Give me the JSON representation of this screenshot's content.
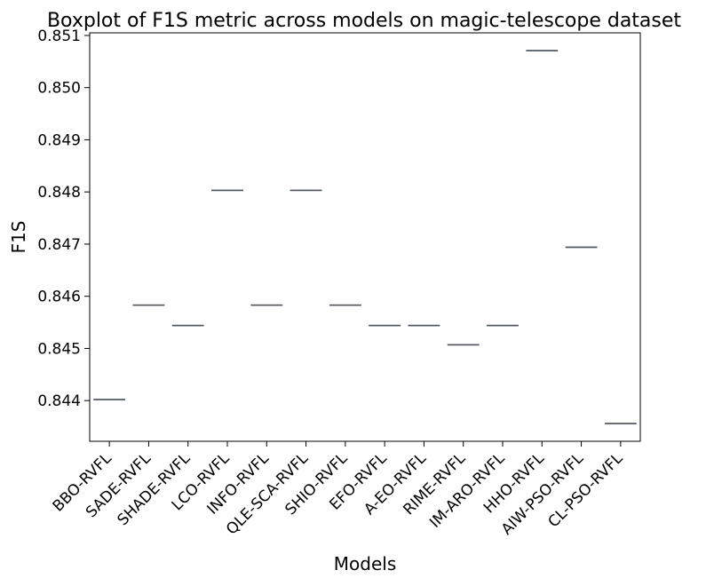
{
  "chart_data": {
    "type": "box",
    "title": "Boxplot of F1S metric across models on magic-telescope dataset",
    "xlabel": "Models",
    "ylabel": "F1S",
    "categories": [
      "BBO-RVFL",
      "SADE-RVFL",
      "SHADE-RVFL",
      "LCO-RVFL",
      "INFO-RVFL",
      "QLE-SCA-RVFL",
      "SHIO-RVFL",
      "EFO-RVFL",
      "A-EO-RVFL",
      "RIME-RVFL",
      "IM-ARO-RVFL",
      "HHO-RVFL",
      "AIW-PSO-RVFL",
      "CL-PSO-RVFL"
    ],
    "values": [
      0.84402,
      0.84583,
      0.84544,
      0.84803,
      0.84583,
      0.84803,
      0.84583,
      0.84544,
      0.84544,
      0.84507,
      0.84544,
      0.85071,
      0.84694,
      0.84356
    ],
    "ylim": [
      0.84322,
      0.85105
    ],
    "yticks": [
      0.844,
      0.845,
      0.846,
      0.847,
      0.848,
      0.849,
      0.85,
      0.851
    ],
    "ytick_labels": [
      "0.844",
      "0.845",
      "0.846",
      "0.847",
      "0.848",
      "0.849",
      "0.850",
      "0.851"
    ],
    "grid": false,
    "box_color": "#4c72b0",
    "median_color": "#555555"
  }
}
